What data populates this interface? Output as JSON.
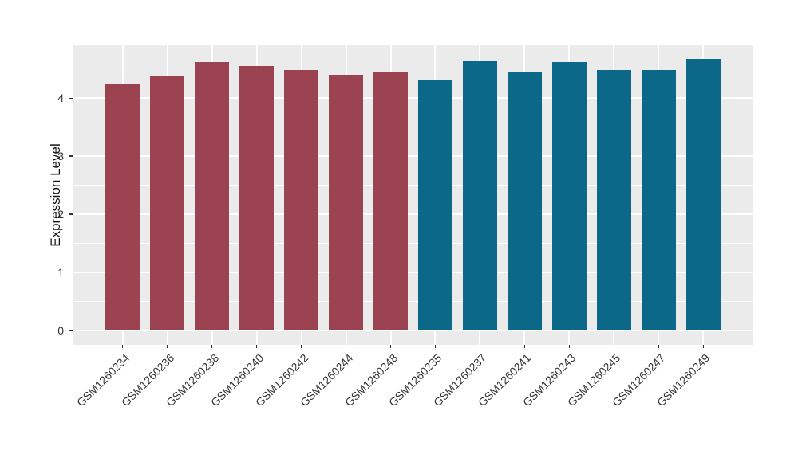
{
  "figure": {
    "background_color": "#FFFFFF",
    "panel_background_color": "#EBEBEB",
    "gridline_color": "#FFFFFF",
    "axis_text_color": "#333333",
    "tick_mark_color": "#333333"
  },
  "chart_data": {
    "type": "bar",
    "title": "",
    "xlabel": "",
    "ylabel": "Expression Level",
    "categories": [
      "GSM1260234",
      "GSM1260236",
      "GSM1260238",
      "GSM1260240",
      "GSM1260242",
      "GSM1260244",
      "GSM1260248",
      "GSM1260235",
      "GSM1260237",
      "GSM1260241",
      "GSM1260243",
      "GSM1260245",
      "GSM1260247",
      "GSM1260249"
    ],
    "values": [
      4.25,
      4.38,
      4.62,
      4.56,
      4.48,
      4.4,
      4.45,
      4.32,
      4.64,
      4.45,
      4.62,
      4.49,
      4.48,
      4.68
    ],
    "bar_colors": [
      "#9B4350",
      "#9B4350",
      "#9B4350",
      "#9B4350",
      "#9B4350",
      "#9B4350",
      "#9B4350",
      "#0C6889",
      "#0C6889",
      "#0C6889",
      "#0C6889",
      "#0C6889",
      "#0C6889",
      "#0C6889"
    ],
    "group_colors": {
      "left_group": "#9B4350",
      "right_group": "#0C6889"
    },
    "yticks": [
      0,
      1,
      2,
      3,
      4
    ],
    "ytick_labels": [
      "0",
      "1",
      "2",
      "3",
      "4"
    ],
    "ylim": [
      -0.25,
      4.91
    ],
    "grid": "on",
    "legend": "none",
    "x_tick_rotation_deg": 45
  }
}
